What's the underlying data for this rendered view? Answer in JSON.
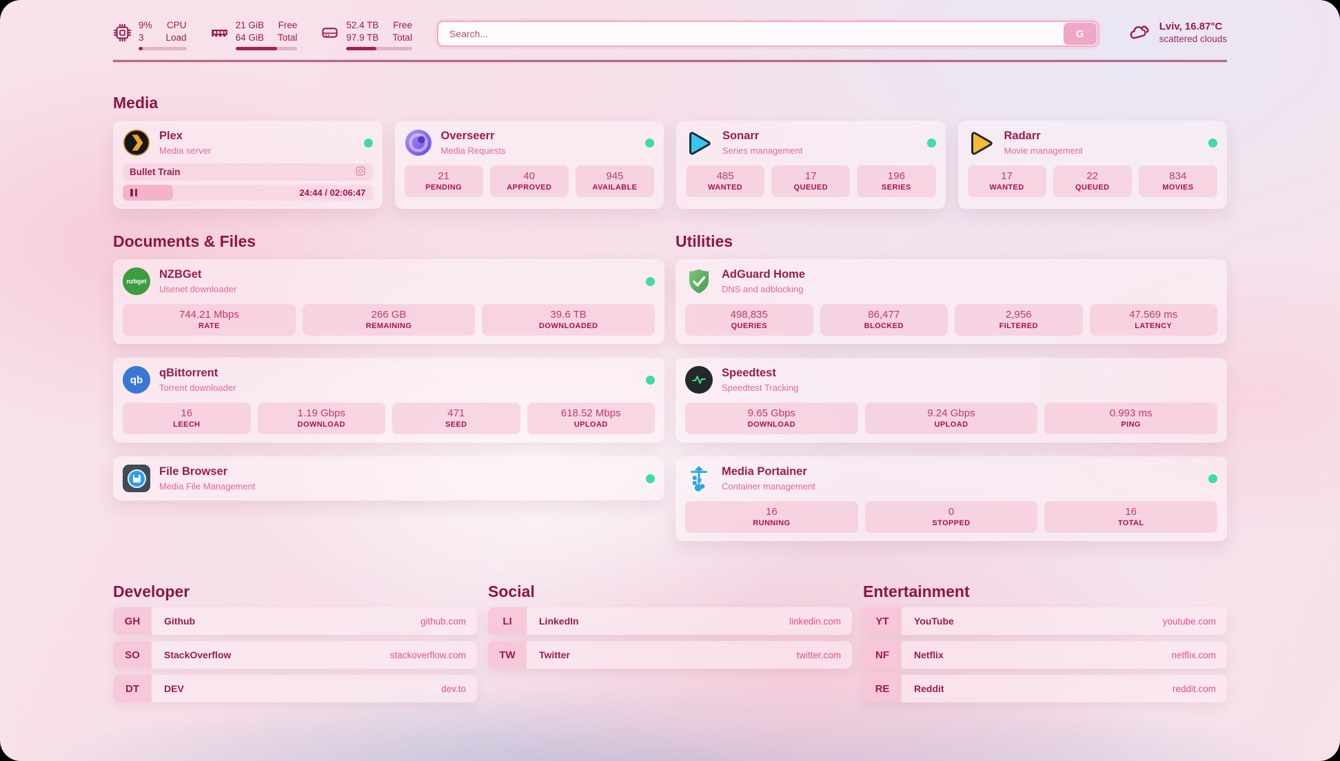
{
  "topbar": {
    "cpu": {
      "value_top": "9%",
      "value_bottom": "3",
      "label_top": "CPU",
      "label_bottom": "Load",
      "bar_percent": 8
    },
    "memory": {
      "value_top": "21 GiB",
      "value_bottom": "64 GiB",
      "label_top": "Free",
      "label_bottom": "Total",
      "bar_percent": 67
    },
    "disk": {
      "value_top": "52.4 TB",
      "value_bottom": "97.9 TB",
      "label_top": "Free",
      "label_bottom": "Total",
      "bar_percent": 46
    },
    "search": {
      "placeholder": "Search...",
      "button_label": "G"
    },
    "weather": {
      "headline": "Lviv, 16.87°C",
      "condition": "scattered clouds"
    }
  },
  "colors": {
    "accent_maroon": "#9a1b50",
    "heading": "#8c1545",
    "subtitle_pink": "#e4679c",
    "link_pink": "#ea4d93",
    "status_online_green": "#3fdda0",
    "stat_pill_bg": "#f6c5d7",
    "search_border": "#f3abca"
  },
  "icons": {
    "cpu-icon": "chip",
    "memory-icon": "ram-stick",
    "disk-icon": "drive",
    "weather-icon": "scattered-clouds",
    "search-button": "G",
    "plex-icon": "black circle / gold chevron",
    "overseerr-icon": "purple eye circle",
    "sonarr-icon": "blue play triangle",
    "radarr-icon": "yellow play triangle",
    "nzbget-icon": "green circle nzbget",
    "qbittorrent-icon": "blue circle qb",
    "filebrowser-icon": "dark square blue circle floppy",
    "adguard-icon": "green shield check",
    "speedtest-icon": "dark circle green pulse",
    "portainer-icon": "blue crane",
    "pause-icon": "pause bars",
    "camera-icon": "rounded square with lens"
  },
  "sections": {
    "media": {
      "title": "Media",
      "cards": [
        {
          "name": "Plex",
          "subtitle": "Media server",
          "online": true,
          "now_playing": {
            "title": "Bullet Train",
            "time_display": "24:44 / 02:06:47",
            "progress_percent": 20
          }
        },
        {
          "name": "Overseerr",
          "subtitle": "Media Requests",
          "online": true,
          "stats": [
            {
              "value": "21",
              "label": "PENDING"
            },
            {
              "value": "40",
              "label": "APPROVED"
            },
            {
              "value": "945",
              "label": "AVAILABLE"
            }
          ]
        },
        {
          "name": "Sonarr",
          "subtitle": "Series management",
          "online": true,
          "stats": [
            {
              "value": "485",
              "label": "WANTED"
            },
            {
              "value": "17",
              "label": "QUEUED"
            },
            {
              "value": "196",
              "label": "SERIES"
            }
          ]
        },
        {
          "name": "Radarr",
          "subtitle": "Movie management",
          "online": true,
          "stats": [
            {
              "value": "17",
              "label": "WANTED"
            },
            {
              "value": "22",
              "label": "QUEUED"
            },
            {
              "value": "834",
              "label": "MOVIES"
            }
          ]
        }
      ]
    },
    "documents": {
      "title": "Documents & Files",
      "cards": [
        {
          "name": "NZBGet",
          "subtitle": "Usenet downloader",
          "online": true,
          "stats": [
            {
              "value": "744.21 Mbps",
              "label": "RATE"
            },
            {
              "value": "266 GB",
              "label": "REMAINING"
            },
            {
              "value": "39.6 TB",
              "label": "DOWNLOADED"
            }
          ]
        },
        {
          "name": "qBittorrent",
          "subtitle": "Torrent downloader",
          "online": true,
          "stats": [
            {
              "value": "16",
              "label": "LEECH"
            },
            {
              "value": "1.19 Gbps",
              "label": "DOWNLOAD"
            },
            {
              "value": "471",
              "label": "SEED"
            },
            {
              "value": "618.52 Mbps",
              "label": "UPLOAD"
            }
          ]
        },
        {
          "name": "File Browser",
          "subtitle": "Media File Management",
          "online": true,
          "stats": []
        }
      ]
    },
    "utilities": {
      "title": "Utilities",
      "cards": [
        {
          "name": "AdGuard Home",
          "subtitle": "DNS and adblocking",
          "online": false,
          "stats": [
            {
              "value": "498,835",
              "label": "QUERIES"
            },
            {
              "value": "86,477",
              "label": "BLOCKED"
            },
            {
              "value": "2,956",
              "label": "FILTERED"
            },
            {
              "value": "47.569 ms",
              "label": "LATENCY"
            }
          ]
        },
        {
          "name": "Speedtest",
          "subtitle": "Speedtest Tracking",
          "online": false,
          "stats": [
            {
              "value": "9.65 Gbps",
              "label": "DOWNLOAD"
            },
            {
              "value": "9.24 Gbps",
              "label": "UPLOAD"
            },
            {
              "value": "0.993 ms",
              "label": "PING"
            }
          ]
        },
        {
          "name": "Media Portainer",
          "subtitle": "Container management",
          "online": true,
          "stats": [
            {
              "value": "16",
              "label": "RUNNING"
            },
            {
              "value": "0",
              "label": "STOPPED"
            },
            {
              "value": "16",
              "label": "TOTAL"
            }
          ]
        }
      ]
    },
    "developer": {
      "title": "Developer",
      "bookmarks": [
        {
          "abbr": "GH",
          "name": "Github",
          "host": "github.com"
        },
        {
          "abbr": "SO",
          "name": "StackOverflow",
          "host": "stackoverflow.com"
        },
        {
          "abbr": "DT",
          "name": "DEV",
          "host": "dev.to"
        }
      ]
    },
    "social": {
      "title": "Social",
      "bookmarks": [
        {
          "abbr": "LI",
          "name": "LinkedIn",
          "host": "linkedin.com"
        },
        {
          "abbr": "TW",
          "name": "Twitter",
          "host": "twitter.com"
        }
      ]
    },
    "entertainment": {
      "title": "Entertainment",
      "bookmarks": [
        {
          "abbr": "YT",
          "name": "YouTube",
          "host": "youtube.com"
        },
        {
          "abbr": "NF",
          "name": "Netflix",
          "host": "netflix.com"
        },
        {
          "abbr": "RE",
          "name": "Reddit",
          "host": "reddit.com"
        }
      ]
    }
  }
}
